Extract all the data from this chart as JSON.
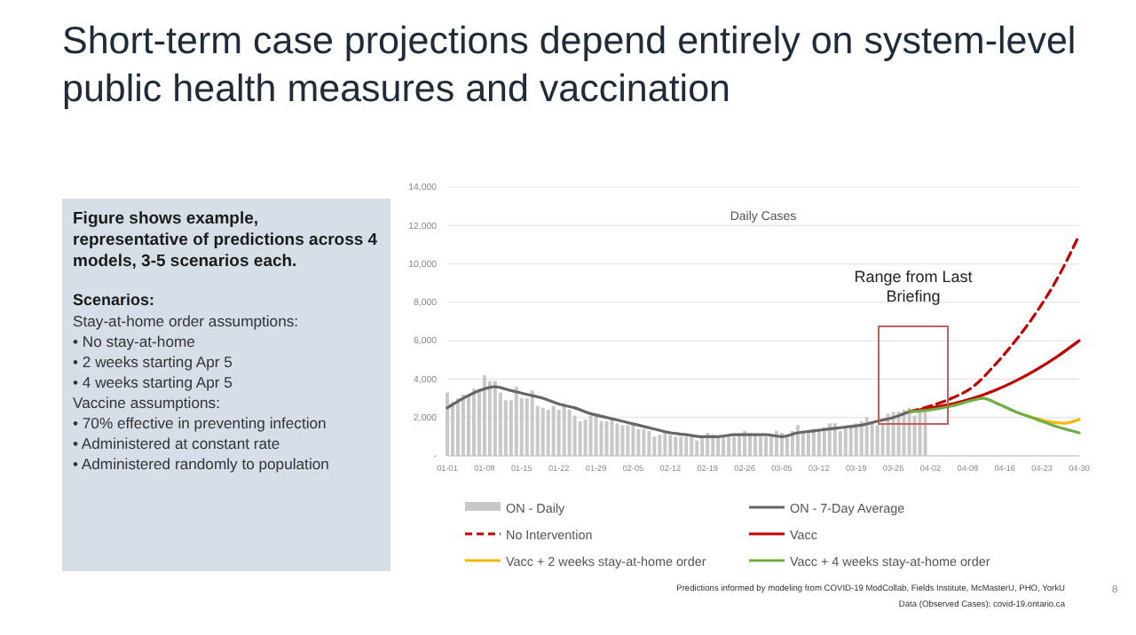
{
  "chart_data": [
    {
      "type": "other",
      "title": "Figure shows example, representative of predictions across 4 models, 3-5 scenarios each.",
      "subtitle": "Scenarios:",
      "annotations": [
        "Stay-at-home order assumptions:",
        "• No stay-at-home",
        "• 2 weeks starting Apr 5",
        "• 4 weeks starting Apr 5",
        "Vaccine assumptions:",
        "• 70% effective in preventing infection",
        "• Administered at constant rate",
        "• Administered randomly to population"
      ]
    },
    {
      "type": "line",
      "title": "Short-term case projections depend entirely on system-level public health measures and vaccination",
      "subtitle": "Daily Cases",
      "xlim": [
        "--01-01",
        "--04-30"
      ],
      "xticks": [
        {
          "value": "--01-01",
          "label": "01-01"
        },
        {
          "value": "--01-08",
          "label": "01-08"
        },
        {
          "value": "--01-15",
          "label": "01-15"
        },
        {
          "value": "--01-22",
          "label": "01-22"
        },
        {
          "value": "--01-29",
          "label": "01-29"
        },
        {
          "value": "--02-05",
          "label": "02-05"
        },
        {
          "value": "--02-12",
          "label": "02-12"
        },
        {
          "value": "--02-19",
          "label": "02-19"
        },
        {
          "value": "--02-26",
          "label": "02-26"
        },
        {
          "value": "--03-05",
          "label": "03-05"
        },
        {
          "value": "--03-12",
          "label": "03-12"
        },
        {
          "value": "--03-19",
          "label": "03-19"
        },
        {
          "value": "--03-26",
          "label": "03-26"
        },
        {
          "value": "--04-02",
          "label": "04-02"
        },
        {
          "value": "--04-09",
          "label": "04-09"
        },
        {
          "value": "--04-16",
          "label": "04-16"
        },
        {
          "value": "--04-23",
          "label": "04-23"
        },
        {
          "value": "--04-30",
          "label": "04-30"
        }
      ],
      "ylim": [
        0,
        14000
      ],
      "yticks": [
        {
          "value": 0,
          "label": "-"
        },
        {
          "value": 2000,
          "label": "2,000"
        },
        {
          "value": 4000,
          "label": "4,000"
        },
        {
          "value": 6000,
          "label": "6,000"
        },
        {
          "value": 8000,
          "label": "8,000"
        },
        {
          "value": 10000,
          "label": "10,000"
        },
        {
          "value": 12000,
          "label": "12,000"
        },
        {
          "value": 14000,
          "label": "14,000"
        }
      ],
      "grid": "y",
      "legend": "bottom",
      "series": [
        {
          "name": "ON - Daily",
          "type": "bar",
          "color": "#c8c8c8",
          "x": [
            "--01-01",
            "--01-02",
            "--01-03",
            "--01-04",
            "--01-05",
            "--01-06",
            "--01-07",
            "--01-08",
            "--01-09",
            "--01-10",
            "--01-11",
            "--01-12",
            "--01-13",
            "--01-14",
            "--01-15",
            "--01-16",
            "--01-17",
            "--01-18",
            "--01-19",
            "--01-20",
            "--01-21",
            "--01-22",
            "--01-23",
            "--01-24",
            "--01-25",
            "--01-26",
            "--01-27",
            "--01-28",
            "--01-29",
            "--01-30",
            "--01-31",
            "--02-01",
            "--02-02",
            "--02-03",
            "--02-04",
            "--02-05",
            "--02-06",
            "--02-07",
            "--02-08",
            "--02-09",
            "--02-10",
            "--02-11",
            "--02-12",
            "--02-13",
            "--02-14",
            "--02-15",
            "--02-16",
            "--02-17",
            "--02-18",
            "--02-19",
            "--02-20",
            "--02-21",
            "--02-22",
            "--02-23",
            "--02-24",
            "--02-25",
            "--02-26",
            "--02-27",
            "--02-28",
            "--03-01",
            "--03-02",
            "--03-03",
            "--03-04",
            "--03-05",
            "--03-06",
            "--03-07",
            "--03-08",
            "--03-09",
            "--03-10",
            "--03-11",
            "--03-12",
            "--03-13",
            "--03-14",
            "--03-15",
            "--03-16",
            "--03-17",
            "--03-18",
            "--03-19",
            "--03-20",
            "--03-21",
            "--03-22",
            "--03-23",
            "--03-24",
            "--03-25",
            "--03-26",
            "--03-27",
            "--03-28",
            "--03-29",
            "--03-30",
            "--03-31",
            "--04-01"
          ],
          "values": [
            3300,
            2800,
            3000,
            3200,
            3100,
            3500,
            3500,
            4200,
            3900,
            3900,
            3300,
            2900,
            2900,
            3600,
            3000,
            3000,
            3400,
            2600,
            2500,
            2400,
            2600,
            2400,
            2700,
            2400,
            2100,
            1800,
            1900,
            2100,
            2100,
            1800,
            1800,
            1900,
            1700,
            1600,
            1600,
            1700,
            1400,
            1400,
            1300,
            1000,
            1100,
            1300,
            1100,
            1000,
            1000,
            1000,
            1000,
            800,
            1000,
            1200,
            1100,
            1000,
            1100,
            1000,
            1000,
            1100,
            1300,
            1200,
            1100,
            1000,
            1000,
            1000,
            1300,
            1200,
            1100,
            1300,
            1600,
            1200,
            1300,
            1400,
            1400,
            1500,
            1700,
            1700,
            1300,
            1500,
            1600,
            1700,
            1800,
            2000,
            1800,
            1600,
            1700,
            2200,
            2300,
            2300,
            2400,
            2500,
            2100,
            2300,
            2300
          ]
        },
        {
          "name": "ON - 7-Day Average",
          "color": "#666666",
          "x": [
            "--01-01",
            "--01-04",
            "--01-07",
            "--01-10",
            "--01-13",
            "--01-16",
            "--01-19",
            "--01-22",
            "--01-25",
            "--01-28",
            "--01-31",
            "--02-03",
            "--02-06",
            "--02-09",
            "--02-12",
            "--02-15",
            "--02-18",
            "--02-21",
            "--02-24",
            "--02-27",
            "--03-02",
            "--03-05",
            "--03-08",
            "--03-11",
            "--03-14",
            "--03-17",
            "--03-20",
            "--03-23",
            "--03-26",
            "--03-29"
          ],
          "values": [
            2500,
            3000,
            3400,
            3600,
            3400,
            3200,
            3000,
            2700,
            2500,
            2200,
            2000,
            1800,
            1600,
            1400,
            1200,
            1100,
            1000,
            1000,
            1100,
            1100,
            1100,
            1000,
            1200,
            1300,
            1400,
            1500,
            1600,
            1800,
            2000,
            2300
          ]
        },
        {
          "name": "No Intervention",
          "color": "#c00000",
          "line_style": "dashed",
          "x": [
            "--03-29",
            "--04-02",
            "--04-06",
            "--04-10",
            "--04-14",
            "--04-18",
            "--04-22",
            "--04-26",
            "--04-30"
          ],
          "values": [
            2300,
            2600,
            3000,
            3600,
            4700,
            6000,
            7500,
            9300,
            11500
          ]
        },
        {
          "name": "Vacc",
          "color": "#c00000",
          "x": [
            "--03-29",
            "--04-02",
            "--04-06",
            "--04-10",
            "--04-14",
            "--04-18",
            "--04-22",
            "--04-26",
            "--04-30"
          ],
          "values": [
            2300,
            2500,
            2700,
            3000,
            3400,
            3900,
            4500,
            5200,
            6000
          ]
        },
        {
          "name": "Vacc + 2 weeks stay-at-home order",
          "color": "#f5b800",
          "x": [
            "--04-20",
            "--04-24",
            "--04-27",
            "--04-30"
          ],
          "values": [
            2100,
            1800,
            1700,
            1900
          ]
        },
        {
          "name": "Vacc + 4 weeks stay-at-home order",
          "color": "#70ad47",
          "x": [
            "--03-29",
            "--04-02",
            "--04-06",
            "--04-10",
            "--04-12",
            "--04-14",
            "--04-18",
            "--04-22",
            "--04-26",
            "--04-30"
          ],
          "values": [
            2300,
            2400,
            2600,
            2900,
            3000,
            2800,
            2300,
            1900,
            1500,
            1200
          ]
        }
      ],
      "annotations": [
        "Range from Last Briefing",
        "Predictions informed by modeling from COVID-19 ModCollab, Fields Institute, McMasterU, PHO, YorkU",
        "Data (Observed Cases): covid-19.ontario.ca",
        "8"
      ]
    }
  ]
}
